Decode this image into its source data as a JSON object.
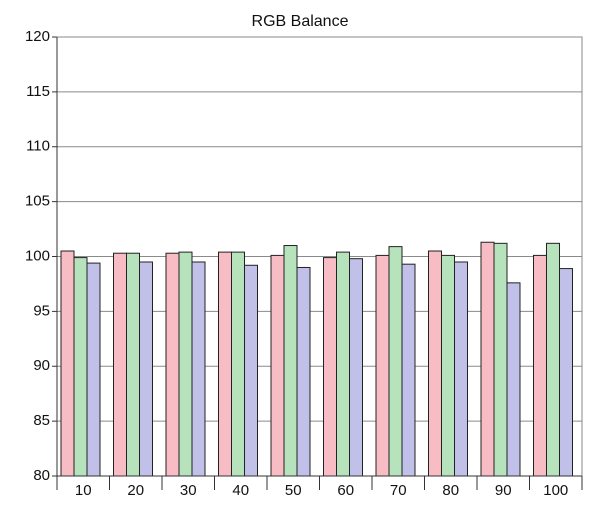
{
  "chart_data": {
    "type": "bar",
    "title": "RGB Balance",
    "categories": [
      "10",
      "20",
      "30",
      "40",
      "50",
      "60",
      "70",
      "80",
      "90",
      "100"
    ],
    "series": [
      {
        "color": "#f8bcc4",
        "values": [
          100.5,
          100.3,
          100.3,
          100.4,
          100.1,
          99.9,
          100.1,
          100.5,
          101.3,
          100.1
        ]
      },
      {
        "color": "#b6e2bc",
        "values": [
          99.9,
          100.3,
          100.4,
          100.4,
          101.0,
          100.4,
          100.9,
          100.1,
          101.2,
          101.2
        ]
      },
      {
        "color": "#c0c0e8",
        "values": [
          99.4,
          99.5,
          99.5,
          99.2,
          99.0,
          99.8,
          99.3,
          99.5,
          97.6,
          98.9
        ]
      }
    ],
    "ylim": [
      80,
      120
    ],
    "yticks": [
      80,
      85,
      90,
      95,
      100,
      105,
      110,
      115,
      120
    ],
    "grid": true
  }
}
